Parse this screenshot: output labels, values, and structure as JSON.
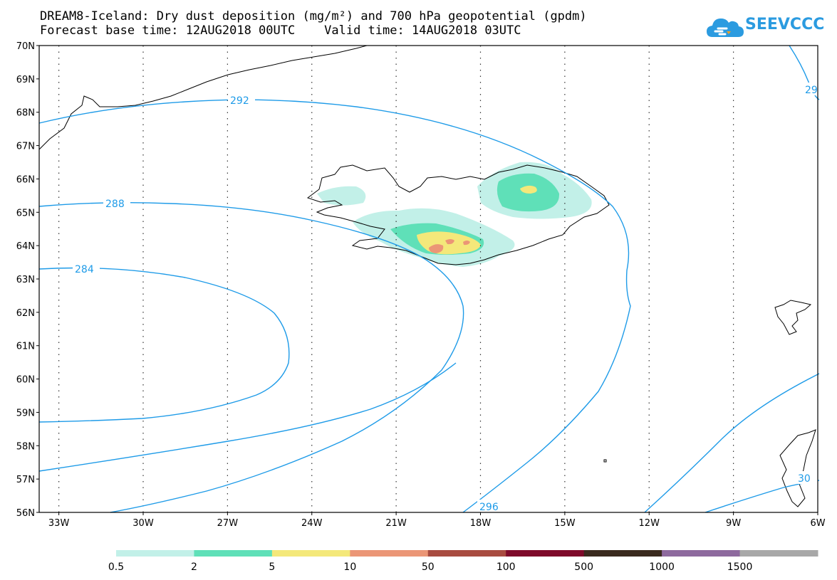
{
  "header": {
    "title_line1": "DREAM8-Iceland: Dry dust deposition (mg/m²) and 700 hPa geopotential (gpdm)",
    "title_line2": "Forecast base time: 12AUG2018 00UTC    Valid time: 14AUG2018 03UTC",
    "logo_text": "SEEVCCC"
  },
  "map": {
    "lat_labels": [
      "70N",
      "69N",
      "68N",
      "67N",
      "66N",
      "65N",
      "64N",
      "63N",
      "62N",
      "61N",
      "60N",
      "59N",
      "58N",
      "57N",
      "56N"
    ],
    "lon_labels": [
      "33W",
      "30W",
      "27W",
      "24W",
      "21W",
      "18W",
      "15W",
      "12W",
      "9W",
      "6W"
    ],
    "contour_labels": [
      "292",
      "288",
      "284",
      "296",
      "29",
      "30"
    ],
    "colors": {
      "contour": "#1e9be8",
      "coast": "#000000"
    }
  },
  "colorbar": {
    "colors": [
      "#c2f0e8",
      "#5fe0b8",
      "#f4e87a",
      "#eb9676",
      "#a84b40",
      "#7e0a2a",
      "#3a2a1e",
      "#8e6a9e",
      "#a8a8a8"
    ],
    "labels": [
      "0.5",
      "2",
      "5",
      "10",
      "50",
      "100",
      "500",
      "1000",
      "1500"
    ]
  }
}
